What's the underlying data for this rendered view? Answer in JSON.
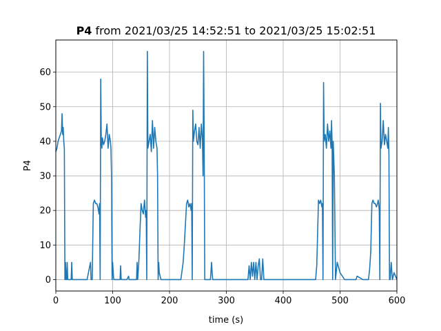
{
  "chart_data": {
    "type": "line",
    "title_bold": "P4",
    "title_rest": " from 2021/03/25 14:52:51 to 2021/03/25 15:02:51",
    "xlabel": "time (s)",
    "ylabel": "P4",
    "xlim": [
      0,
      600
    ],
    "ylim": [
      -3.3,
      69.3
    ],
    "xticks": [
      0,
      100,
      200,
      300,
      400,
      500,
      600
    ],
    "yticks": [
      0,
      10,
      20,
      30,
      40,
      50,
      60
    ],
    "grid": true,
    "series": [
      {
        "color": "#1f77b4",
        "x": [
          0,
          2,
          4,
          6,
          8,
          10,
          11,
          12,
          13,
          14,
          15,
          16,
          17,
          18,
          19,
          20,
          21,
          22,
          25,
          27,
          28,
          29,
          30,
          31,
          32,
          33,
          40,
          50,
          55,
          61,
          62,
          63,
          64,
          66,
          68,
          70,
          72,
          74,
          76,
          77,
          78,
          79,
          80,
          81,
          82,
          84,
          86,
          88,
          90,
          92,
          94,
          96,
          97,
          98,
          99,
          100,
          101,
          102,
          104,
          110,
          113,
          114,
          115,
          118,
          125,
          128,
          129,
          132,
          140,
          142,
          143,
          144,
          146,
          148,
          150,
          152,
          154,
          156,
          158,
          159,
          160,
          161,
          162,
          164,
          166,
          168,
          170,
          172,
          174,
          176,
          178,
          179,
          180,
          181,
          182,
          185,
          190,
          194,
          195,
          196,
          200,
          220,
          224,
          226,
          228,
          230,
          232,
          234,
          236,
          238,
          239,
          240,
          241,
          242,
          244,
          246,
          248,
          250,
          252,
          254,
          256,
          258,
          259,
          260,
          261,
          262,
          263,
          264,
          266,
          272,
          274,
          275,
          276,
          280,
          300,
          337,
          338,
          340,
          342,
          344,
          346,
          348,
          350,
          352,
          354,
          356,
          358,
          360,
          362,
          364,
          366,
          370,
          400,
          455,
          457,
          459,
          460,
          462,
          464,
          466,
          467,
          468,
          469,
          470,
          471,
          472,
          474,
          476,
          478,
          480,
          482,
          484,
          485,
          486,
          487,
          488,
          490,
          492,
          495,
          500,
          508,
          510,
          525,
          528,
          530,
          540,
          545,
          546,
          548,
          550,
          552,
          554,
          556,
          558,
          560,
          562,
          564,
          566,
          567,
          568,
          569,
          570,
          571,
          572,
          574,
          576,
          578,
          580,
          582,
          584,
          585,
          586,
          587,
          588,
          590,
          592,
          595,
          600
        ],
        "y": [
          37,
          38,
          40,
          41,
          42,
          43,
          48,
          42,
          44,
          40,
          38,
          0,
          5,
          0,
          0,
          5,
          0,
          0,
          0,
          0,
          5,
          0,
          0,
          0,
          0,
          0,
          0,
          0,
          0,
          5,
          0,
          0,
          0,
          22,
          23,
          22,
          22,
          21,
          19,
          22,
          0,
          58,
          40,
          38,
          41,
          39,
          40,
          42,
          45,
          38,
          42,
          40,
          38,
          30,
          0,
          5,
          2,
          0,
          0,
          0,
          0,
          4,
          0,
          0,
          0,
          1,
          0,
          0,
          0,
          0,
          5,
          0,
          5,
          14,
          22,
          20,
          19,
          23,
          18,
          20,
          0,
          66,
          38,
          40,
          42,
          37,
          46,
          38,
          44,
          40,
          38,
          30,
          0,
          5,
          2,
          0,
          0,
          0,
          0,
          0,
          0,
          0,
          5,
          10,
          16,
          22,
          23,
          21,
          22,
          20,
          22,
          0,
          49,
          40,
          43,
          45,
          40,
          39,
          44,
          38,
          45,
          40,
          30,
          66,
          40,
          0,
          0,
          0,
          0,
          0,
          5,
          2,
          0,
          0,
          0,
          0,
          0,
          4,
          0,
          5,
          1,
          5,
          0,
          5,
          0,
          4,
          6,
          0,
          0,
          6,
          0,
          0,
          0,
          0,
          0,
          4,
          10,
          23,
          22,
          23,
          22,
          21,
          22,
          0,
          57,
          40,
          42,
          38,
          45,
          40,
          43,
          38,
          46,
          40,
          0,
          40,
          30,
          0,
          5,
          2,
          0,
          0,
          0,
          0,
          1,
          0,
          0,
          0,
          0,
          0,
          3,
          8,
          22,
          23,
          22,
          22,
          21,
          22,
          23,
          22,
          20,
          0,
          51,
          38,
          40,
          46,
          39,
          42,
          40,
          38,
          44,
          36,
          0,
          0,
          5,
          0,
          2,
          0
        ]
      }
    ]
  }
}
